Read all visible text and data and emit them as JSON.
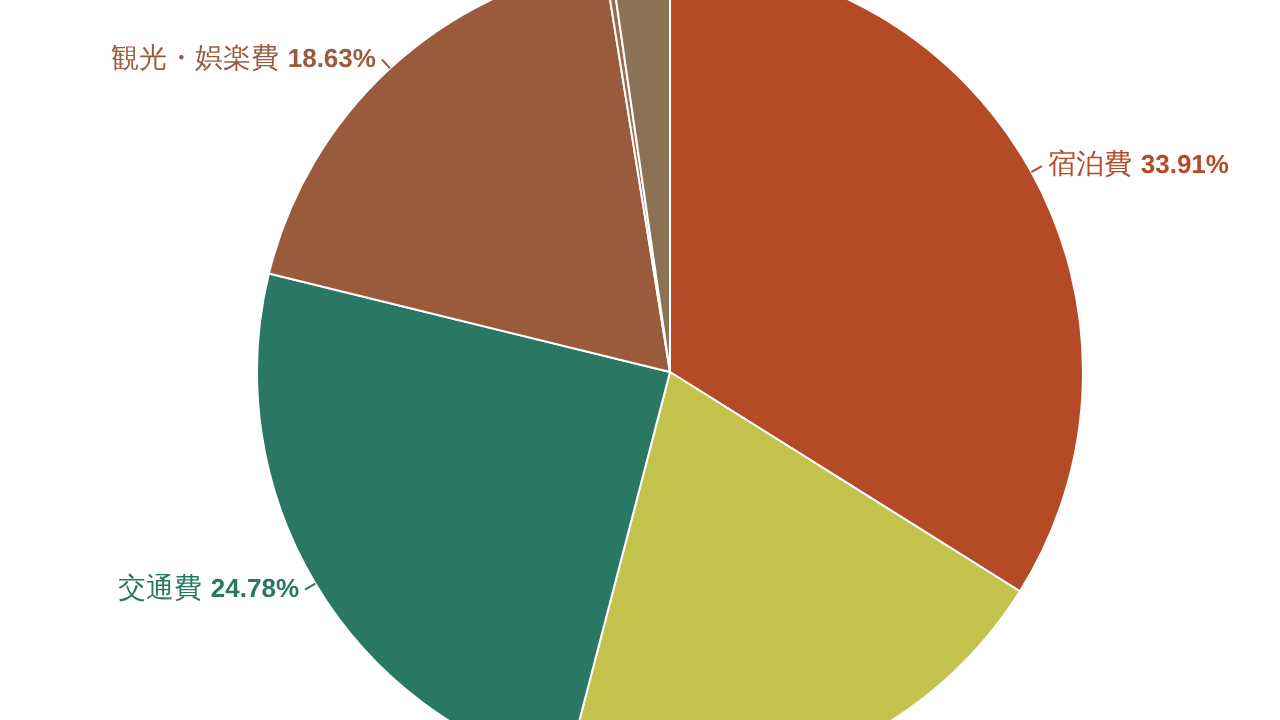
{
  "chart_data": {
    "type": "pie",
    "categories": [
      "宿泊費",
      null,
      "交通費",
      "観光・娯楽費",
      null,
      null
    ],
    "values": [
      33.91,
      20.14,
      24.78,
      18.63,
      0.25,
      2.29
    ],
    "colors": [
      "#b44a26",
      "#c3c24d",
      "#2a7763",
      "#9a5b3d",
      "#a06a4a",
      "#8a7355"
    ],
    "value_labels": [
      "33.91%",
      null,
      "24.78%",
      "18.63%",
      null,
      null
    ],
    "legend": false
  }
}
